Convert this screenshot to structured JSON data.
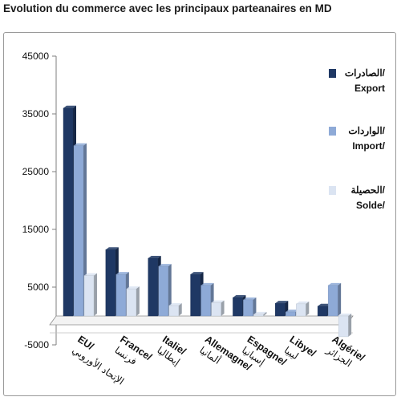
{
  "chart_data": {
    "type": "bar",
    "title": "Evolution du commerce avec les principaux parteanaires en MD",
    "categories": [
      {
        "fr": "EU",
        "ar": "الإتحاد الأوروبي"
      },
      {
        "fr": "France",
        "ar": "فرنسا"
      },
      {
        "fr": "Italie",
        "ar": "إيطاليا"
      },
      {
        "fr": "Allemagne",
        "ar": "ألمانيا"
      },
      {
        "fr": "Espagne",
        "ar": "إسبانيا"
      },
      {
        "fr": "Libye",
        "ar": "ليبيا"
      },
      {
        "fr": "Algérie",
        "ar": "الجزائر"
      }
    ],
    "series": [
      {
        "name_ar": "الصادرات",
        "name": "Export",
        "color": "#1f3864",
        "values": [
          36000,
          11500,
          10000,
          7200,
          3200,
          2200,
          1700
        ]
      },
      {
        "name_ar": "الواردات",
        "name": "Import",
        "color": "#8eaad7",
        "values": [
          29500,
          7200,
          8600,
          5300,
          2800,
          700,
          5300
        ]
      },
      {
        "name_ar": "الحصيلة",
        "name": "Solde",
        "color": "#dbe4f2",
        "values": [
          7000,
          4700,
          1800,
          2300,
          300,
          2100,
          -3600
        ]
      }
    ],
    "ylim": [
      -5000,
      45000
    ],
    "yticks": [
      45000,
      35000,
      25000,
      15000,
      5000,
      -5000
    ],
    "legend": "right",
    "grid": false
  }
}
